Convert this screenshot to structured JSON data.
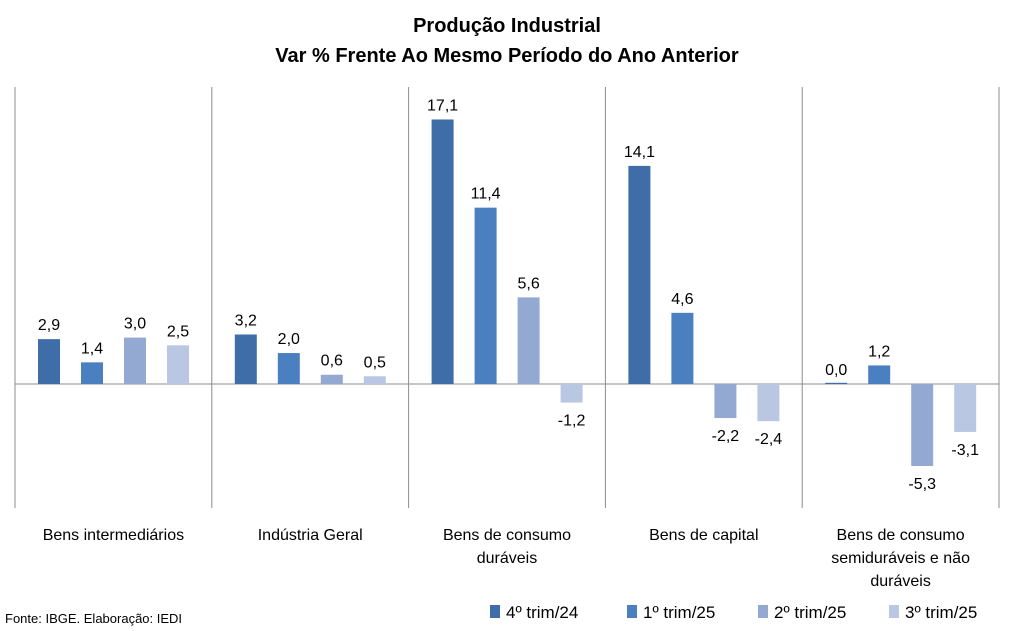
{
  "chart_data": {
    "type": "bar",
    "title_line1": "Produção Industrial",
    "title_line2": "Var % Frente Ao Mesmo Período do Ano Anterior",
    "categories": [
      [
        "Bens intermediários"
      ],
      [
        "Indústria Geral"
      ],
      [
        "Bens de consumo",
        "duráveis"
      ],
      [
        "Bens de capital"
      ],
      [
        "Bens de consumo",
        "semiduráveis e não",
        "duráveis"
      ]
    ],
    "series": [
      {
        "name": "4º trim/24",
        "color": "#3E6DA8",
        "values": [
          2.9,
          3.2,
          17.1,
          14.1,
          0.0
        ]
      },
      {
        "name": "1º trim/25",
        "color": "#4A7FC0",
        "values": [
          1.4,
          2.0,
          11.4,
          4.6,
          1.2
        ]
      },
      {
        "name": "2º trim/25",
        "color": "#94A9D2",
        "values": [
          3.0,
          0.6,
          5.6,
          -2.2,
          -5.3
        ]
      },
      {
        "name": "3º trim/25",
        "color": "#BAC7E2",
        "values": [
          2.5,
          0.5,
          -1.2,
          -2.4,
          -3.1
        ]
      }
    ],
    "data_labels": [
      [
        "2,9",
        "3,2",
        "17,1",
        "14,1",
        "0,0"
      ],
      [
        "1,4",
        "2,0",
        "11,4",
        "4,6",
        "1,2"
      ],
      [
        "3,0",
        "0,6",
        "5,6",
        "-2,2",
        "-5,3"
      ],
      [
        "2,5",
        "0,5",
        "-1,2",
        "-2,4",
        "-3,1"
      ]
    ],
    "ylim": [
      -8.1,
      19.2
    ],
    "xlabel": "",
    "ylabel": "",
    "legend_position": "bottom-right"
  },
  "footer": {
    "source": "Fonte: IBGE. Elaboração: IEDI"
  }
}
